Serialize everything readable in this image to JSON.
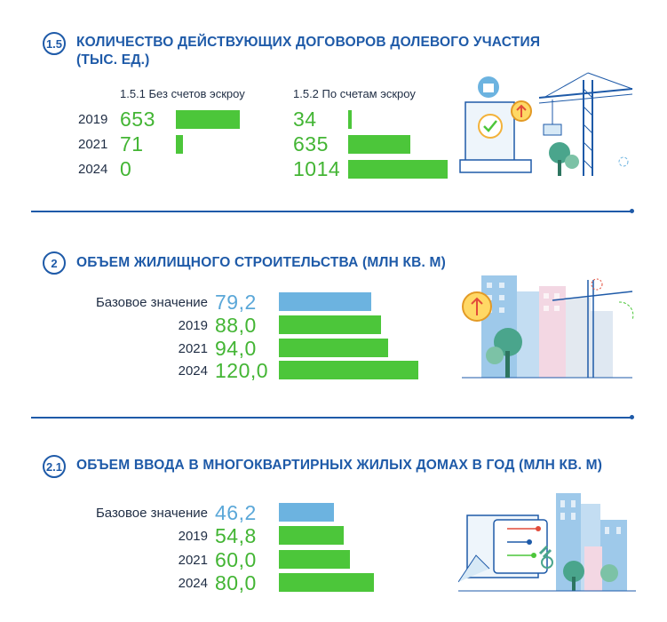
{
  "colors": {
    "accent": "#1e5aa8",
    "green": "#4cc63a",
    "blue": "#6cb3e0"
  },
  "section1": {
    "badge": "1.5",
    "title_line1": "КОЛИЧЕСТВО ДЕЙСТВУЮЩИХ ДОГОВОРОВ ДОЛЕВОГО УЧАСТИЯ",
    "title_line2": "(ТЫС. ЕД.)",
    "col1_label": "1.5.1 Без счетов эскроу",
    "col2_label": "1.5.2 По счетам эскроу",
    "years": [
      "2019",
      "2021",
      "2024"
    ],
    "col1_values": [
      "653",
      "71",
      "0"
    ],
    "col2_values": [
      "34",
      "635",
      "1014"
    ],
    "illustration": "crane-document-icon"
  },
  "section2": {
    "badge": "2",
    "title": "ОБЪЕМ ЖИЛИЩНОГО СТРОИТЕЛЬСТВА (МЛН КВ. М)",
    "labels": [
      "Базовое значение",
      "2019",
      "2021",
      "2024"
    ],
    "values": [
      "79,2",
      "88,0",
      "94,0",
      "120,0"
    ],
    "illustration": "city-crane-icon"
  },
  "section3": {
    "badge": "2.1",
    "title": "ОБЪЕМ ВВОДА В МНОГОКВАРТИРНЫХ ЖИЛЫХ ДОМАХ В ГОД (МЛН КВ. М)",
    "labels": [
      "Базовое значение",
      "2019",
      "2021",
      "2024"
    ],
    "values": [
      "46,2",
      "54,8",
      "60,0",
      "80,0"
    ],
    "illustration": "apartment-keys-icon"
  },
  "chart_data": [
    {
      "type": "bar",
      "title": "КОЛИЧЕСТВО ДЕЙСТВУЮЩИХ ДОГОВОРОВ ДОЛЕВОГО УЧАСТИЯ (ТЫС. ЕД.)",
      "categories": [
        "2019",
        "2021",
        "2024"
      ],
      "series": [
        {
          "name": "1.5.1 Без счетов эскроу",
          "values": [
            653,
            71,
            0
          ]
        },
        {
          "name": "1.5.2 По счетам эскроу",
          "values": [
            34,
            635,
            1014
          ]
        }
      ],
      "orientation": "horizontal"
    },
    {
      "type": "bar",
      "title": "ОБЪЕМ ЖИЛИЩНОГО СТРОИТЕЛЬСТВА (МЛН КВ. М)",
      "categories": [
        "Базовое значение",
        "2019",
        "2021",
        "2024"
      ],
      "values": [
        79.2,
        88.0,
        94.0,
        120.0
      ],
      "orientation": "horizontal"
    },
    {
      "type": "bar",
      "title": "ОБЪЕМ ВВОДА В МНОГОКВАРТИРНЫХ ЖИЛЫХ ДОМАХ В ГОД (МЛН КВ. М)",
      "categories": [
        "Базовое значение",
        "2019",
        "2021",
        "2024"
      ],
      "values": [
        46.2,
        54.8,
        60.0,
        80.0
      ],
      "orientation": "horizontal"
    }
  ]
}
